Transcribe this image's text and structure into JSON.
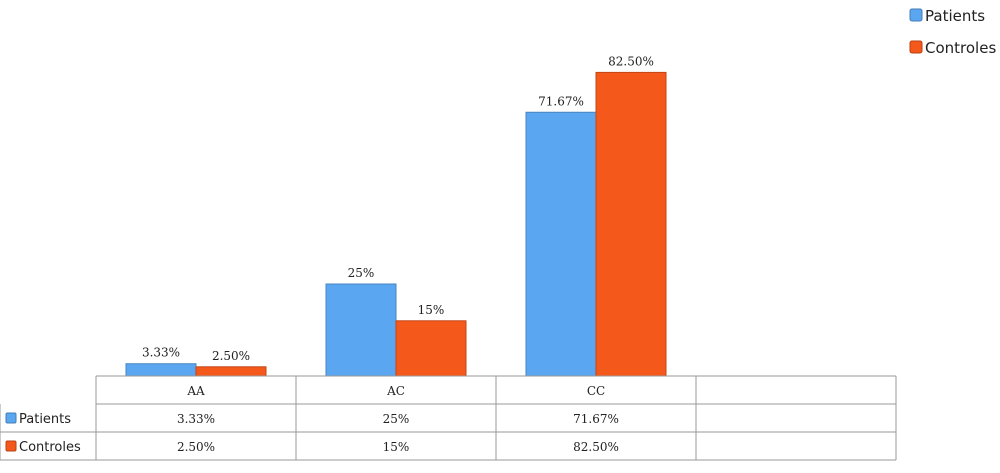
{
  "chart_data": {
    "type": "bar",
    "categories": [
      "AA",
      "AC",
      "CC"
    ],
    "series": [
      {
        "name": "Patients",
        "values": [
          3.33,
          25,
          71.67
        ],
        "labels": [
          "3.33%",
          "25%",
          "71.67%"
        ],
        "color": "#5aa6f0"
      },
      {
        "name": "Controles",
        "values": [
          2.5,
          15,
          82.5
        ],
        "labels": [
          "2.50%",
          "15%",
          "82.50%"
        ],
        "color": "#f4581a"
      }
    ],
    "ylim": [
      0,
      100
    ],
    "legend": "top-right",
    "grid": false,
    "data_table": true
  }
}
